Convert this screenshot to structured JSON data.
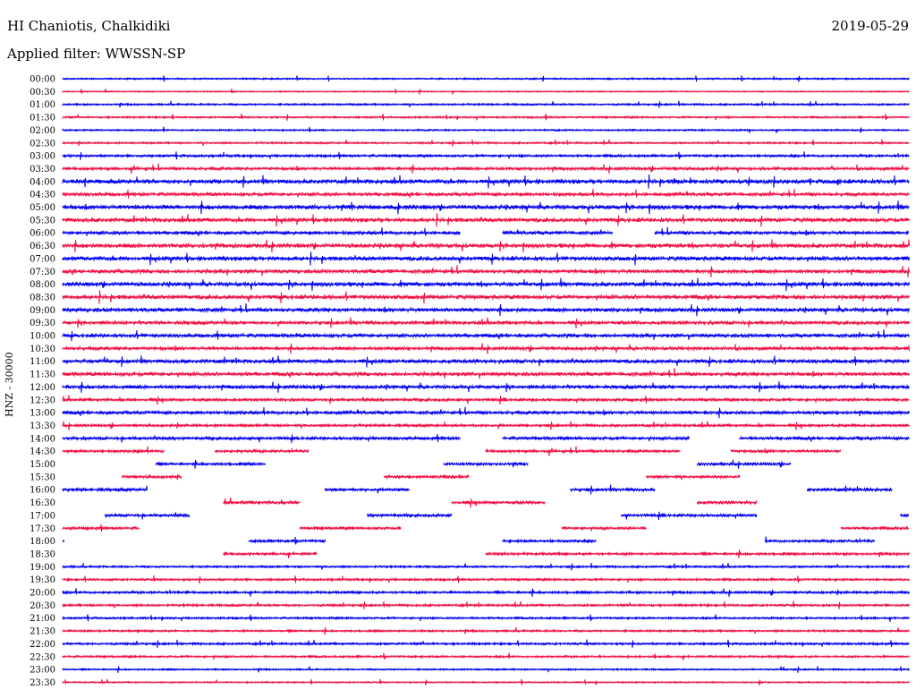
{
  "header": {
    "station": "HI Chaniotis, Chalkidiki",
    "date": "2019-05-29",
    "filter": "Applied filter: WWSSN-SP"
  },
  "chart_data": {
    "type": "line",
    "title": "HI Chaniotis, Chalkidiki",
    "ylabel": "HNZ - 30000",
    "row_labels": [
      "00:00",
      "00:30",
      "01:00",
      "01:30",
      "02:00",
      "02:30",
      "03:00",
      "03:30",
      "04:00",
      "04:30",
      "05:00",
      "05:30",
      "06:00",
      "06:30",
      "07:00",
      "07:30",
      "08:00",
      "08:30",
      "09:00",
      "09:30",
      "10:00",
      "10:30",
      "11:00",
      "11:30",
      "12:00",
      "12:30",
      "13:00",
      "13:30",
      "14:00",
      "14:30",
      "15:00",
      "15:30",
      "16:00",
      "16:30",
      "17:00",
      "17:30",
      "18:00",
      "18:30",
      "19:00",
      "19:30",
      "20:00",
      "20:30",
      "21:00",
      "21:30",
      "22:00",
      "22:30",
      "23:00",
      "23:30"
    ],
    "colors": {
      "even": "#0000ee",
      "odd": "#ee1144"
    },
    "activity": [
      0.15,
      0.05,
      0.2,
      0.2,
      0.15,
      0.2,
      0.35,
      0.5,
      0.85,
      0.6,
      0.9,
      0.8,
      0.6,
      0.85,
      0.8,
      0.7,
      0.8,
      0.8,
      0.75,
      0.6,
      0.65,
      0.6,
      0.7,
      0.7,
      0.65,
      0.45,
      0.6,
      0.4,
      0.5,
      0.45,
      0.4,
      0.45,
      0.5,
      0.5,
      0.45,
      0.4,
      0.4,
      0.4,
      0.25,
      0.3,
      0.35,
      0.3,
      0.25,
      0.25,
      0.3,
      0.25,
      0.15,
      0.1
    ],
    "segments": [
      [],
      [],
      [],
      [],
      [],
      [],
      [],
      [],
      [],
      [],
      [],
      [],
      [
        [
          0.0,
          0.47
        ],
        [
          0.52,
          0.65
        ],
        [
          0.7,
          1.0
        ]
      ],
      [],
      [],
      [],
      [],
      [],
      [],
      [],
      [],
      [],
      [],
      [],
      [],
      [],
      [],
      [],
      [
        [
          0.0,
          0.47
        ],
        [
          0.52,
          0.74
        ],
        [
          0.8,
          1.0
        ]
      ],
      [
        [
          0.0,
          0.12
        ],
        [
          0.18,
          0.29
        ],
        [
          0.5,
          0.73
        ],
        [
          0.79,
          0.92
        ]
      ],
      [
        [
          0.11,
          0.24
        ],
        [
          0.45,
          0.55
        ],
        [
          0.75,
          0.86
        ]
      ],
      [
        [
          0.07,
          0.14
        ],
        [
          0.38,
          0.48
        ],
        [
          0.69,
          0.8
        ]
      ],
      [
        [
          0.0,
          0.1
        ],
        [
          0.31,
          0.41
        ],
        [
          0.6,
          0.7
        ],
        [
          0.88,
          0.98
        ]
      ],
      [
        [
          0.19,
          0.28
        ],
        [
          0.46,
          0.57
        ],
        [
          0.75,
          0.82
        ]
      ],
      [
        [
          0.05,
          0.15
        ],
        [
          0.36,
          0.46
        ],
        [
          0.66,
          0.82
        ],
        [
          0.99,
          1.0
        ]
      ],
      [
        [
          0.0,
          0.09
        ],
        [
          0.28,
          0.4
        ],
        [
          0.59,
          0.69
        ],
        [
          0.92,
          1.0
        ]
      ],
      [
        [
          0.0,
          0.0
        ],
        [
          0.22,
          0.31
        ],
        [
          0.52,
          0.63
        ],
        [
          0.83,
          0.96
        ]
      ],
      [
        [
          0.19,
          0.3
        ],
        [
          0.5,
          1.0
        ]
      ],
      [],
      [],
      [],
      [],
      [],
      [],
      [],
      [],
      [],
      []
    ]
  }
}
